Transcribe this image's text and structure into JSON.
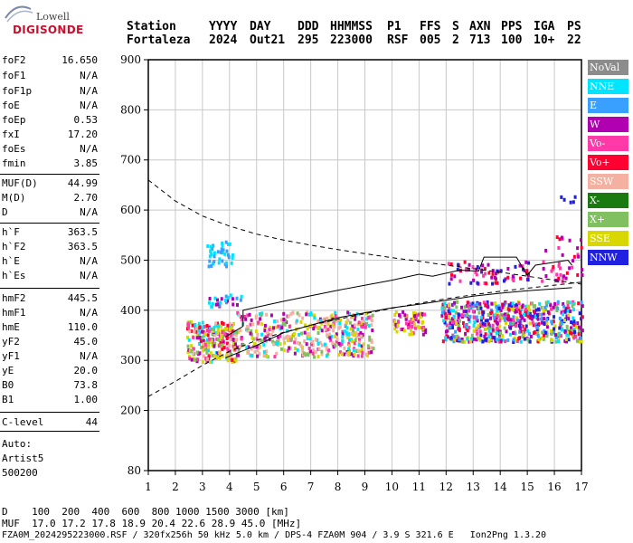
{
  "logo": {
    "line1": "Lowell",
    "line2": "DIGISONDE"
  },
  "header": {
    "labels": [
      "Station",
      "YYYY",
      "DAY",
      "DDD",
      "HHMMSS",
      "P1",
      "FFS",
      "S",
      "AXN",
      "PPS",
      "IGA",
      "PS"
    ],
    "values": [
      "Fortaleza",
      "2024",
      "Out21",
      "295",
      "223000",
      "RSF",
      "005",
      "2",
      "713",
      "100",
      "10+",
      "22"
    ]
  },
  "params": [
    {
      "name": "foF2",
      "value": "16.650"
    },
    {
      "name": "foF1",
      "value": "N/A"
    },
    {
      "name": "foF1p",
      "value": "N/A"
    },
    {
      "name": "foE",
      "value": "N/A"
    },
    {
      "name": "foEp",
      "value": "0.53"
    },
    {
      "name": "fxI",
      "value": "17.20"
    },
    {
      "name": "foEs",
      "value": "N/A"
    },
    {
      "name": "fmin",
      "value": "3.85"
    },
    {
      "name": "MUF(D)",
      "value": "44.99"
    },
    {
      "name": "M(D)",
      "value": "2.70"
    },
    {
      "name": "D",
      "value": "N/A"
    },
    {
      "name": "h`F",
      "value": "363.5"
    },
    {
      "name": "h`F2",
      "value": "363.5"
    },
    {
      "name": "h`E",
      "value": "N/A"
    },
    {
      "name": "h`Es",
      "value": "N/A"
    },
    {
      "name": "hmF2",
      "value": "445.5"
    },
    {
      "name": "hmF1",
      "value": "N/A"
    },
    {
      "name": "hmE",
      "value": "110.0"
    },
    {
      "name": "yF2",
      "value": "45.0"
    },
    {
      "name": "yF1",
      "value": "N/A"
    },
    {
      "name": "yE",
      "value": "20.0"
    },
    {
      "name": "B0",
      "value": "73.8"
    },
    {
      "name": "B1",
      "value": "1.00"
    },
    {
      "name": "C-level",
      "value": "44"
    }
  ],
  "auto": {
    "line1": "Auto:",
    "line2": "Artist5",
    "line3": "500200"
  },
  "legend": [
    {
      "label": "NoVal",
      "color": "#8c8c8c"
    },
    {
      "label": "NNE",
      "color": "#00e5ff"
    },
    {
      "label": "E",
      "color": "#3aa0ff"
    },
    {
      "label": "W",
      "color": "#b000b0"
    },
    {
      "label": "Vo-",
      "color": "#ff3aa8"
    },
    {
      "label": "Vo+",
      "color": "#ff0030"
    },
    {
      "label": "SSW",
      "color": "#f4b0a0"
    },
    {
      "label": "X-",
      "color": "#1a7a10"
    },
    {
      "label": "X+",
      "color": "#80c060"
    },
    {
      "label": "SSE",
      "color": "#d8d800"
    },
    {
      "label": "NNW",
      "color": "#2020e0"
    }
  ],
  "bottom": {
    "d_row": "D    100  200  400  600  800 1000 1500 3000 [km]",
    "muf_row": "MUF  17.0 17.2 17.8 18.9 20.4 22.6 28.9 45.0 [MHz]",
    "footer": "FZA0M_2024295223000.RSF / 320fx256h 50 kHz 5.0 km / DPS-4 FZA0M 904 / 3.9 S 321.6 E   Ion2Png 1.3.20"
  },
  "chart_data": {
    "type": "scatter",
    "x_ticks": [
      1,
      2,
      3,
      4,
      5,
      6,
      7,
      8,
      9,
      10,
      11,
      12,
      13,
      14,
      15,
      16,
      17
    ],
    "y_ticks": [
      200,
      300,
      400,
      500,
      600,
      700,
      800,
      900
    ],
    "xlim": [
      1,
      17
    ],
    "ylim": [
      80,
      900
    ],
    "y_min_label": 80,
    "grid": true,
    "curves": {
      "dashed_upper": [
        [
          1,
          660
        ],
        [
          2,
          618
        ],
        [
          3,
          588
        ],
        [
          4,
          568
        ],
        [
          5,
          552
        ],
        [
          6,
          540
        ],
        [
          7,
          530
        ],
        [
          8,
          521
        ],
        [
          9,
          513
        ],
        [
          10,
          505
        ],
        [
          11,
          498
        ],
        [
          12,
          490
        ],
        [
          13,
          483
        ],
        [
          14,
          476
        ],
        [
          15,
          468
        ],
        [
          16,
          460
        ],
        [
          17,
          452
        ]
      ],
      "dashed_lower": [
        [
          1,
          228
        ],
        [
          2,
          258
        ],
        [
          3,
          290
        ],
        [
          4,
          318
        ],
        [
          5,
          340
        ],
        [
          6,
          356
        ],
        [
          7,
          370
        ],
        [
          8,
          382
        ],
        [
          9,
          393
        ],
        [
          10,
          404
        ],
        [
          11,
          414
        ],
        [
          12,
          423
        ],
        [
          13,
          431
        ],
        [
          14,
          438
        ],
        [
          15,
          444
        ],
        [
          16,
          450
        ],
        [
          17,
          456
        ]
      ],
      "virtual_height": [
        [
          3.85,
          347
        ],
        [
          4.5,
          368
        ],
        [
          4.5,
          400
        ],
        [
          6,
          418
        ],
        [
          8,
          440
        ],
        [
          10,
          460
        ],
        [
          11,
          472
        ],
        [
          11.5,
          468
        ],
        [
          12.5,
          480
        ],
        [
          13.2,
          478
        ],
        [
          13.4,
          506
        ],
        [
          14.6,
          506
        ],
        [
          15,
          470
        ],
        [
          15.3,
          490
        ],
        [
          16.5,
          500
        ],
        [
          16.65,
          490
        ]
      ],
      "true_height": [
        [
          3.85,
          305
        ],
        [
          5,
          330
        ],
        [
          6,
          355
        ],
        [
          7,
          370
        ],
        [
          8,
          385
        ],
        [
          9,
          395
        ],
        [
          10,
          405
        ],
        [
          11,
          412
        ],
        [
          12,
          420
        ],
        [
          13,
          428
        ],
        [
          14,
          434
        ],
        [
          15,
          439
        ],
        [
          16.65,
          445
        ]
      ]
    }
  }
}
